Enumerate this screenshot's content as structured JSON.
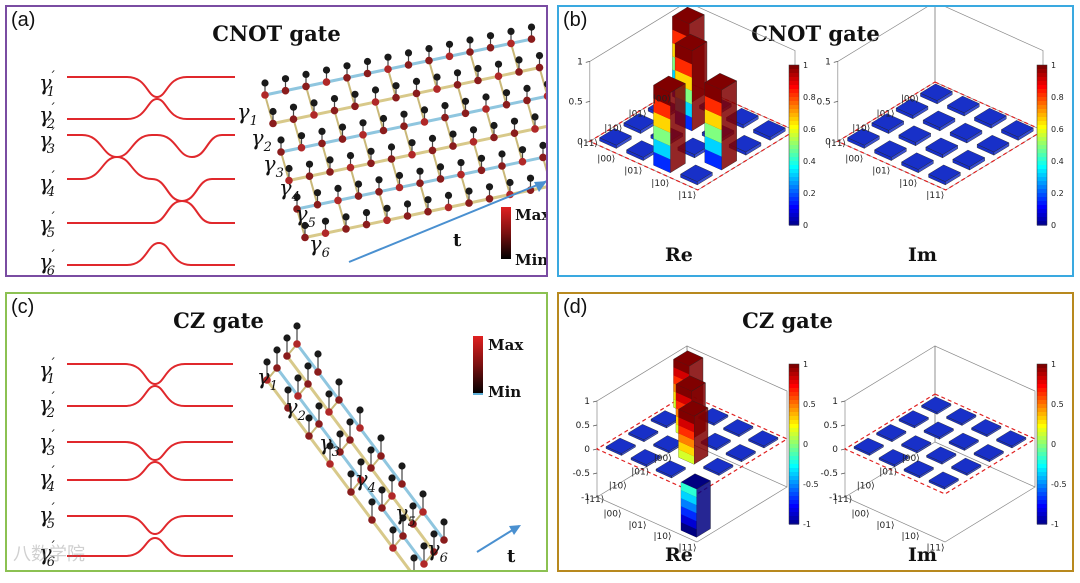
{
  "panels": {
    "a": {
      "label": "(a)",
      "title": "CNOT gate",
      "legend_max": "Max",
      "legend_min": "Min",
      "time_label": "t"
    },
    "b": {
      "label": "(b)",
      "title": "CNOT gate",
      "re_label": "Re",
      "im_label": "Im"
    },
    "c": {
      "label": "(c)",
      "title": "CZ gate",
      "legend_max": "Max",
      "legend_min": "Min",
      "time_label": "t"
    },
    "d": {
      "label": "(d)",
      "title": "CZ gate",
      "re_label": "Re",
      "im_label": "Im"
    }
  },
  "modes": {
    "primed": [
      "γ′1",
      "γ′2",
      "γ′3",
      "γ′4",
      "γ′5",
      "γ′6"
    ],
    "plain": [
      "γ1",
      "γ2",
      "γ3",
      "γ4",
      "γ5",
      "γ6"
    ],
    "base": "γ",
    "prime": "′",
    "indices": [
      "1",
      "2",
      "3",
      "4",
      "5",
      "6"
    ]
  },
  "basis_kets": [
    "|00⟩",
    "|01⟩",
    "|10⟩",
    "|11⟩"
  ],
  "chart_data": [
    {
      "type": "bar3d",
      "title": "CNOT gate",
      "xlabel": "Re",
      "zlim": [
        0,
        1
      ],
      "ticks": [
        "1",
        "0.5",
        "0"
      ],
      "colorbar": {
        "range": [
          0,
          1
        ],
        "ticks": [
          "1",
          "0.8",
          "0.6",
          "0.4",
          "0.2",
          "0"
        ]
      },
      "rows": [
        "|00⟩",
        "|01⟩",
        "|10⟩",
        "|11⟩"
      ],
      "cols": [
        "|00⟩",
        "|01⟩",
        "|10⟩",
        "|11⟩"
      ],
      "matrix": [
        [
          1,
          0,
          0,
          0
        ],
        [
          0,
          1,
          0,
          0
        ],
        [
          0,
          0,
          0,
          1
        ],
        [
          0,
          0,
          1,
          0
        ]
      ]
    },
    {
      "type": "bar3d",
      "title": "CNOT gate",
      "xlabel": "Im",
      "zlim": [
        0,
        1
      ],
      "ticks": [
        "1",
        "0.5",
        "0"
      ],
      "colorbar": {
        "range": [
          0,
          1
        ],
        "ticks": [
          "1",
          "0.8",
          "0.6",
          "0.4",
          "0.2",
          "0"
        ]
      },
      "rows": [
        "|00⟩",
        "|01⟩",
        "|10⟩",
        "|11⟩"
      ],
      "cols": [
        "|00⟩",
        "|01⟩",
        "|10⟩",
        "|11⟩"
      ],
      "matrix": [
        [
          0,
          0,
          0,
          0
        ],
        [
          0,
          0,
          0,
          0
        ],
        [
          0,
          0,
          0,
          0
        ],
        [
          0,
          0,
          0,
          0
        ]
      ]
    },
    {
      "type": "bar3d",
      "title": "CZ gate",
      "xlabel": "Re",
      "zlim": [
        -1,
        1
      ],
      "ticks": [
        "1",
        "0.5",
        "0",
        "-0.5",
        "-1"
      ],
      "colorbar": {
        "range": [
          -1,
          1
        ],
        "ticks": [
          "1",
          "0.5",
          "0",
          "-0.5",
          "-1"
        ]
      },
      "rows": [
        "|00⟩",
        "|01⟩",
        "|10⟩",
        "|11⟩"
      ],
      "cols": [
        "|00⟩",
        "|01⟩",
        "|10⟩",
        "|11⟩"
      ],
      "matrix": [
        [
          1,
          0,
          0,
          0
        ],
        [
          0,
          1,
          0,
          0
        ],
        [
          0,
          0,
          1,
          0
        ],
        [
          0,
          0,
          0,
          -1
        ]
      ]
    },
    {
      "type": "bar3d",
      "title": "CZ gate",
      "xlabel": "Im",
      "zlim": [
        -1,
        1
      ],
      "ticks": [
        "1",
        "0.5",
        "0",
        "-0.5",
        "-1"
      ],
      "colorbar": {
        "range": [
          -1,
          1
        ],
        "ticks": [
          "1",
          "0.5",
          "0",
          "-0.5",
          "-1"
        ]
      },
      "rows": [
        "|00⟩",
        "|01⟩",
        "|10⟩",
        "|11⟩"
      ],
      "cols": [
        "|00⟩",
        "|01⟩",
        "|10⟩",
        "|11⟩"
      ],
      "matrix": [
        [
          0,
          0,
          0,
          0
        ],
        [
          0,
          0,
          0,
          0
        ],
        [
          0,
          0,
          0,
          0
        ],
        [
          0,
          0,
          0,
          0
        ]
      ]
    }
  ],
  "colors": {
    "waveguide": "#e0282c",
    "panel_a": "#7a4ca2",
    "panel_b": "#3aa9e0",
    "panel_c": "#8cc152",
    "panel_d": "#b8891e",
    "time_arrow": "#4a90d0"
  },
  "watermark": "八数学院"
}
